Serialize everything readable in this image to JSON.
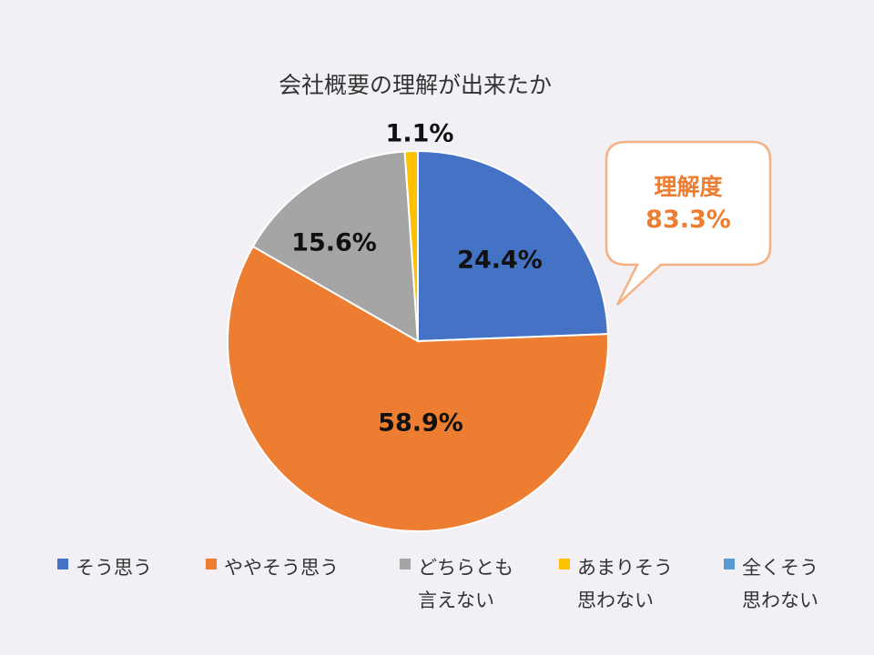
{
  "chart_data": {
    "type": "pie",
    "title": "会社概要の理解が出来たか",
    "categories": [
      "そう思う",
      "ややそう思う",
      "どちらとも\n言えない",
      "あまりそう\n思わない",
      "全くそう\n思わない"
    ],
    "values": [
      24.4,
      58.9,
      15.6,
      1.1,
      0.0
    ],
    "data_labels": [
      "24.4%",
      "58.9%",
      "15.6%",
      "1.1%",
      ""
    ],
    "colors": [
      "#4472c4",
      "#ed7d31",
      "#a5a5a5",
      "#ffc000",
      "#5b9bd5"
    ],
    "legend_position": "bottom",
    "callout": {
      "title": "理解度",
      "value": "83.3%"
    }
  }
}
